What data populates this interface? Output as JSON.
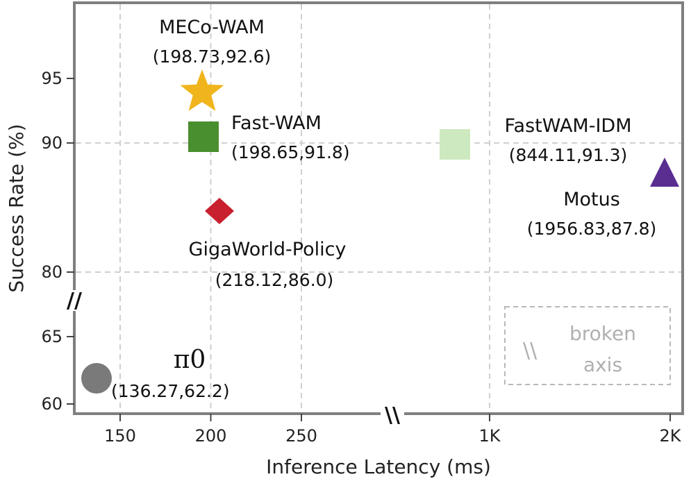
{
  "chart_data": {
    "type": "scatter",
    "title": "",
    "xlabel": "Inference Latency (ms)",
    "ylabel": "Success Rate (%)",
    "x_ticks": [
      "150",
      "200",
      "250",
      "1K",
      "2K"
    ],
    "y_ticks": [
      "60",
      "65",
      "80",
      "90",
      "95"
    ],
    "x_axis_broken": true,
    "y_axis_broken": true,
    "grid": true,
    "points": [
      {
        "name": "MECo-WAM",
        "coord_label": "(198.73,92.6)",
        "x": 198.73,
        "y": 92.6,
        "marker": "star",
        "color": "#f0b51c",
        "name_color": "#c8661a"
      },
      {
        "name": "Fast-WAM",
        "coord_label": "(198.65,91.8)",
        "x": 198.65,
        "y": 91.8,
        "marker": "square",
        "color": "#4a8f2f"
      },
      {
        "name": "FastWAM-IDM",
        "coord_label": "(844.11,91.3)",
        "x": 844.11,
        "y": 91.3,
        "marker": "square",
        "color": "#cde9bf"
      },
      {
        "name": "Motus",
        "coord_label": "(1956.83,87.8)",
        "x": 1956.83,
        "y": 87.8,
        "marker": "triangle",
        "color": "#5a2d91"
      },
      {
        "name": "GigaWorld-Policy",
        "coord_label": "(218.12,86.0)",
        "x": 218.12,
        "y": 86.0,
        "marker": "diamond",
        "color": "#c8202e"
      },
      {
        "name": "π0",
        "coord_label": "(136.27,62.2)",
        "x": 136.27,
        "y": 62.2,
        "marker": "circle",
        "color": "#7a7a7a"
      }
    ],
    "legend_note": [
      "\\\\",
      "broken",
      "axis"
    ],
    "break_symbol": "//",
    "x_break_symbol": "\\\\"
  }
}
